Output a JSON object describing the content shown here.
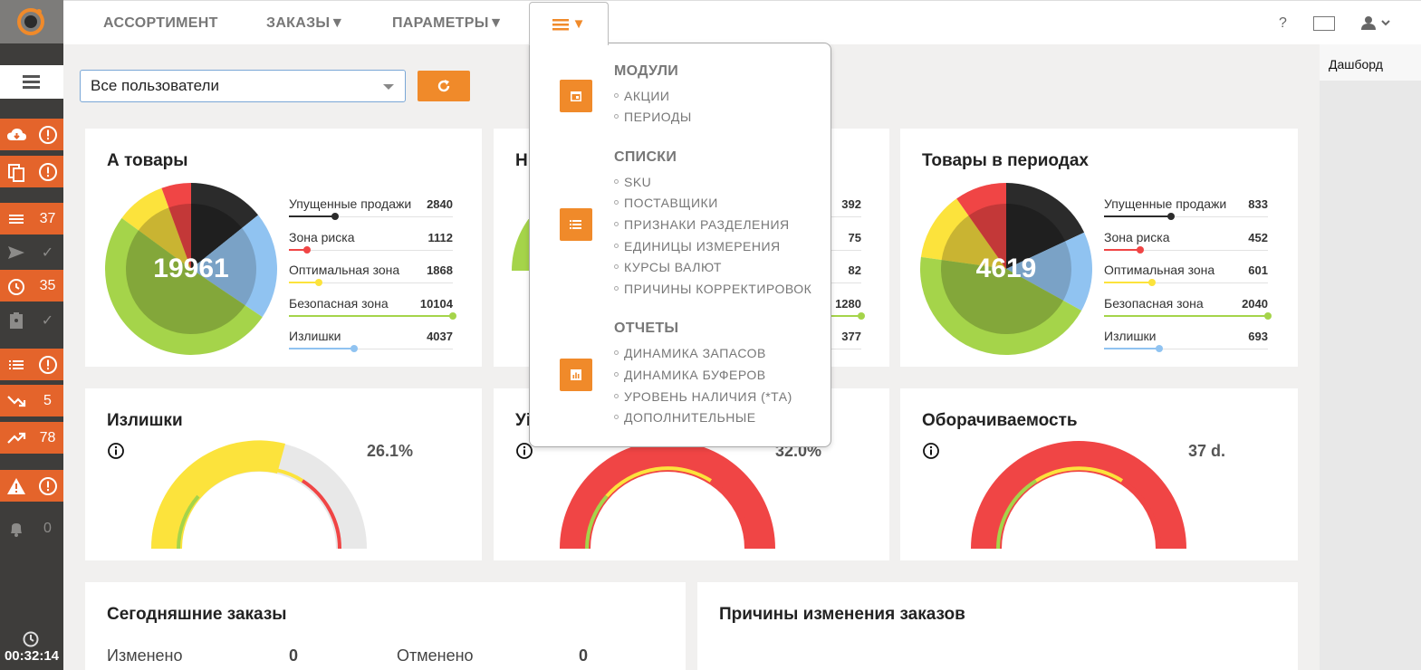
{
  "nav": {
    "assortment": "АССОРТИМЕНТ",
    "orders": "ЗАКАЗЫ▼",
    "params": "ПАРАМЕТРЫ▼",
    "menu_arrow": "▼",
    "help": "?"
  },
  "right_panel": {
    "label": "Дашборд"
  },
  "sidebar": {
    "rows": [
      {
        "icon": "cloud-download-icon",
        "value": "!",
        "bg": "#e4642b"
      },
      {
        "icon": "copy-icon",
        "value": "!",
        "bg": "#e4642b"
      },
      {
        "icon": "list-icon",
        "value": "37",
        "bg": "#e4642b"
      },
      {
        "icon": "send-icon",
        "value": "✓",
        "bg": "#3e3d3b"
      },
      {
        "icon": "timer-icon",
        "value": "35",
        "bg": "#e4642b"
      },
      {
        "icon": "clipboard-icon",
        "value": "✓",
        "bg": "#3e3d3b"
      },
      {
        "icon": "checklist-icon",
        "value": "!",
        "bg": "#e4642b"
      },
      {
        "icon": "trending-down-icon",
        "value": "5",
        "bg": "#e4642b"
      },
      {
        "icon": "trending-up-icon",
        "value": "78",
        "bg": "#e4642b"
      },
      {
        "icon": "warning-icon",
        "value": "!",
        "bg": "#e4642b"
      },
      {
        "icon": "bell-icon",
        "value": "0",
        "bg": "#3e3d3b"
      }
    ],
    "time": "00:32:14"
  },
  "filter": {
    "user_select": "Все пользователи"
  },
  "dropdown": {
    "sections": [
      {
        "head": "МОДУЛИ",
        "icon": "calendar-icon",
        "items": [
          "АКЦИИ",
          "ПЕРИОДЫ"
        ]
      },
      {
        "head": "СПИСКИ",
        "icon": "list-icon",
        "items": [
          "SKU",
          "ПОСТАВЩИКИ",
          "ПРИЗНАКИ РАЗДЕЛЕНИЯ",
          "ЕДИНИЦЫ ИЗМЕРЕНИЯ",
          "КУРСЫ ВАЛЮТ",
          "ПРИЧИНЫ КОРРЕКТИРОВОК"
        ]
      },
      {
        "head": "ОТЧЕТЫ",
        "icon": "bar-chart-icon",
        "items": [
          "ДИНАМИКА ЗАПАСОВ",
          "ДИНАМИКА БУФЕРОВ",
          "УРОВЕНЬ НАЛИЧИЯ (*ТА)",
          "ДОПОЛНИТЕЛЬНЫЕ"
        ]
      }
    ]
  },
  "colors": {
    "lost": "#2b2b2b",
    "risk": "#f04545",
    "optimal": "#fce33c",
    "safe": "#a5d44a",
    "excess": "#90c3f1",
    "accent": "#f08a2a",
    "sidebar_orange": "#e4642b"
  },
  "legend_labels": [
    "Упущенные продажи",
    "Зона риска",
    "Оптимальная зона",
    "Безопасная зона",
    "Излишки"
  ],
  "cards": {
    "a_goods": {
      "title": "А товары",
      "total": "19961",
      "values": [
        "2840",
        "1112",
        "1868",
        "10104",
        "4037"
      ]
    },
    "mid": {
      "title_visible": "Н",
      "values": [
        "392",
        "75",
        "82",
        "1280",
        "377"
      ]
    },
    "period_goods": {
      "title": "Товары в периодах",
      "total": "4619",
      "values": [
        "833",
        "452",
        "601",
        "2040",
        "693"
      ]
    },
    "excess": {
      "title": "Излишки",
      "value": "26.1%"
    },
    "mid_gauge": {
      "title_visible": "Уі",
      "value": "32.0%"
    },
    "turnover": {
      "title": "Оборачиваемость",
      "value": "37 d."
    },
    "today_orders": {
      "title": "Сегодняшние заказы",
      "changed_label": "Изменено",
      "changed": "0",
      "canceled_label": "Отменено",
      "canceled": "0"
    },
    "reasons": {
      "title": "Причины изменения заказов"
    }
  },
  "chart_data": [
    {
      "type": "pie",
      "title": "А товары",
      "categories": [
        "Упущенные продажи",
        "Зона риска",
        "Оптимальная зона",
        "Безопасная зона",
        "Излишки"
      ],
      "values": [
        2840,
        1112,
        1868,
        10104,
        4037
      ],
      "total": 19961
    },
    {
      "type": "pie",
      "title": "Товары в периодах",
      "categories": [
        "Упущенные продажи",
        "Зона риска",
        "Оптимальная зона",
        "Безопасная зона",
        "Излишки"
      ],
      "values": [
        833,
        452,
        601,
        2040,
        693
      ],
      "total": 4619
    }
  ]
}
